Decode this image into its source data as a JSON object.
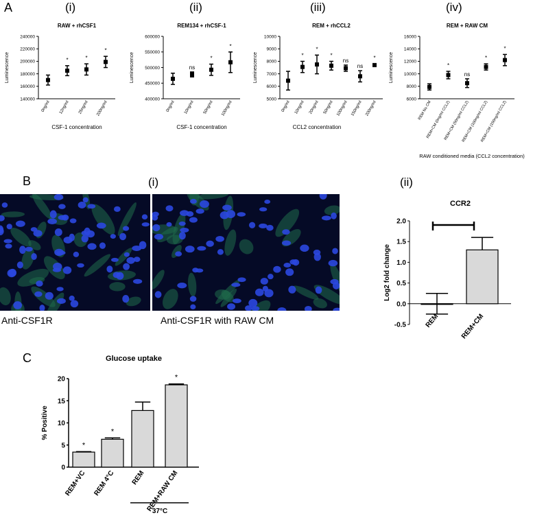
{
  "panel_labels": {
    "A": "A",
    "B": "B",
    "C": "C",
    "a_i": "(i)",
    "a_ii": "(ii)",
    "a_iii": "(iii)",
    "a_iv": "(iv)",
    "b_i": "(i)",
    "b_ii": "(ii)"
  },
  "micrographs": {
    "left_caption": "Anti-CSF1R",
    "right_caption": "Anti-CSF1R with RAW CM"
  },
  "chart_data": [
    {
      "id": "a1",
      "type": "scatter",
      "title": "RAW + rhCSF1",
      "xlabel": "CSF-1 concentration",
      "ylabel": "Luminescence",
      "categories": [
        "0ng/ml",
        "12ng/ml",
        "25ng/ml",
        "200ng/ml"
      ],
      "values": [
        170000,
        185000,
        187000,
        199000
      ],
      "errors": [
        8000,
        8000,
        9000,
        9000
      ],
      "annotations": [
        "",
        "*",
        "*",
        "*"
      ],
      "ylim": [
        140000,
        240000
      ],
      "yticks": [
        140000,
        160000,
        180000,
        200000,
        220000,
        240000
      ],
      "ytick_labels": [
        "140000",
        "160000",
        "180000",
        "200000",
        "220000",
        "240000"
      ]
    },
    {
      "id": "a2",
      "type": "scatter",
      "title": "REM134 + rhCSF-1",
      "xlabel": "CSF-1 concentration",
      "ylabel": "Luminescence",
      "categories": [
        "0ng/ml",
        "10ng/ml",
        "50ng/ml",
        "100ng/ml"
      ],
      "values": [
        464000,
        478000,
        493000,
        517000
      ],
      "errors": [
        18000,
        8000,
        18000,
        33000
      ],
      "annotations": [
        "",
        "ns",
        "*",
        "*"
      ],
      "ylim": [
        400000,
        600000
      ],
      "yticks": [
        400000,
        450000,
        500000,
        550000,
        600000
      ],
      "ytick_labels": [
        "400000",
        "450000",
        "500000",
        "550000",
        "600000"
      ]
    },
    {
      "id": "a3",
      "type": "scatter",
      "title": "REM + rhCCL2",
      "xlabel": "CCL2 concentration",
      "ylabel": "Luminescence",
      "categories": [
        "0ng/ml",
        "10ng/ml",
        "20ng/ml",
        "50ng/ml",
        "100ng/ml",
        "150ng/ml",
        "200ng/ml"
      ],
      "values": [
        6450,
        7550,
        7750,
        7650,
        7450,
        6800,
        7700
      ],
      "errors": [
        750,
        450,
        750,
        350,
        250,
        450,
        100
      ],
      "annotations": [
        "",
        "*",
        "*",
        "*",
        "ns",
        "ns",
        "*"
      ],
      "ylim": [
        5000,
        10000
      ],
      "yticks": [
        5000,
        6000,
        7000,
        8000,
        9000,
        10000
      ],
      "ytick_labels": [
        "5000",
        "6000",
        "7000",
        "8000",
        "9000",
        "10000"
      ]
    },
    {
      "id": "a4",
      "type": "scatter",
      "title": "REM + RAW CM",
      "xlabel": "RAW conditioned media (CCL2 concentration)",
      "ylabel": "Luminescence",
      "categories": [
        "REM No CM",
        "REM+CM (0ng/ml CCL2)",
        "REM+CM (50ng/ml CCL2)",
        "REM+CM (100ng/ml CCL2)",
        "REM+CM (150ng/ml CCL2)"
      ],
      "values": [
        7900,
        9800,
        8500,
        11100,
        12200
      ],
      "errors": [
        500,
        600,
        700,
        500,
        900
      ],
      "annotations": [
        "",
        "*",
        "ns",
        "*",
        "*"
      ],
      "ylim": [
        6000,
        16000
      ],
      "yticks": [
        6000,
        8000,
        10000,
        12000,
        14000,
        16000
      ],
      "ytick_labels": [
        "6000",
        "8000",
        "10000",
        "12000",
        "14000",
        "16000"
      ]
    },
    {
      "id": "b2",
      "type": "bar",
      "title": "CCR2",
      "xlabel": "",
      "ylabel": "Log2 fold change",
      "categories": [
        "REM",
        "REM+CM"
      ],
      "values": [
        0.0,
        1.3
      ],
      "errors": [
        0.25,
        0.3
      ],
      "ylim": [
        -0.5,
        2.0
      ],
      "yticks": [
        -0.5,
        0.0,
        0.5,
        1.0,
        1.5,
        2.0
      ],
      "ytick_labels": [
        "-0.5",
        "0.0",
        "0.5",
        "1.0",
        "1.5",
        "2.0"
      ],
      "bracket": true
    },
    {
      "id": "c",
      "type": "bar",
      "title": "Glucose uptake",
      "xlabel": "",
      "ylabel": "% Positive",
      "categories": [
        "REM+VC",
        "REM 4°C",
        "REM",
        "REM+RAW CM"
      ],
      "values": [
        3.4,
        6.3,
        12.8,
        18.6
      ],
      "errors": [
        0.1,
        0.3,
        1.9,
        0.2
      ],
      "annotations": [
        "*",
        "*",
        "",
        "*"
      ],
      "ylim": [
        0,
        20
      ],
      "yticks": [
        0,
        5,
        10,
        15,
        20
      ],
      "ytick_labels": [
        "0",
        "5",
        "10",
        "15",
        "20"
      ],
      "group_label": "37°C"
    }
  ]
}
